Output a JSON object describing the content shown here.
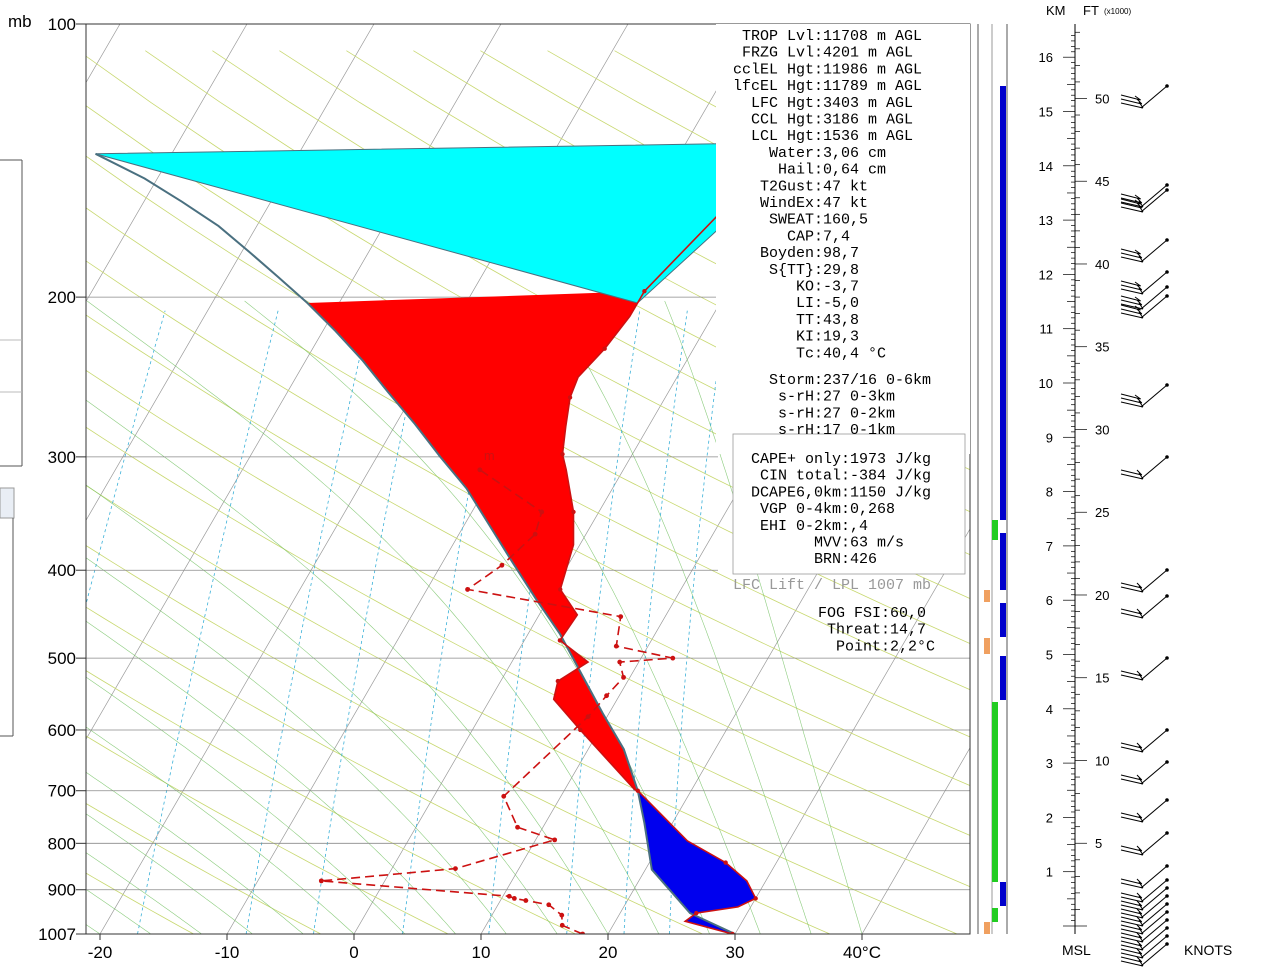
{
  "axis": {
    "pressure_unit": "mb",
    "pressure_ticks": [
      {
        "p": 100,
        "label": "100"
      },
      {
        "p": 200,
        "label": "200"
      },
      {
        "p": 300,
        "label": "300"
      },
      {
        "p": 400,
        "label": "400"
      },
      {
        "p": 500,
        "label": "500"
      },
      {
        "p": 600,
        "label": "600"
      },
      {
        "p": 700,
        "label": "700"
      },
      {
        "p": 800,
        "label": "800"
      },
      {
        "p": 900,
        "label": "900"
      },
      {
        "p": 1007,
        "label": "1007"
      }
    ],
    "temp_ticks": [
      {
        "t": -20,
        "label": "-20"
      },
      {
        "t": -10,
        "label": "-10"
      },
      {
        "t": 0,
        "label": "0"
      },
      {
        "t": 10,
        "label": "10"
      },
      {
        "t": 20,
        "label": "20"
      },
      {
        "t": 30,
        "label": "30"
      },
      {
        "t": 40,
        "label": "40°C"
      }
    ]
  },
  "chart_data": {
    "type": "line",
    "title": "",
    "x_unit": "°C",
    "y_unit": "mb",
    "series": [
      {
        "kind": "dewpoint",
        "marker_label": "m",
        "color": "#cc1111",
        "points": [
          [
            18.0,
            1007
          ],
          [
            16.0,
            985
          ],
          [
            15.5,
            960
          ],
          [
            14.0,
            935
          ],
          [
            12.0,
            925
          ],
          [
            11.0,
            920
          ],
          [
            10.5,
            915
          ],
          [
            -5.0,
            880
          ],
          [
            5.0,
            853
          ],
          [
            11.5,
            793
          ],
          [
            8.0,
            768
          ],
          [
            5.5,
            710
          ],
          [
            8.5,
            580
          ],
          [
            9.0,
            550
          ],
          [
            9.5,
            525
          ],
          [
            8.5,
            505
          ],
          [
            12.5,
            500
          ],
          [
            7.5,
            485
          ],
          [
            6.5,
            450
          ],
          [
            -6.8,
            420
          ],
          [
            -5.2,
            395
          ],
          [
            -4.0,
            365
          ],
          [
            -4.5,
            345
          ],
          [
            -11.3,
            310
          ]
        ]
      },
      {
        "kind": "temperature",
        "color": "#cc1111",
        "points": [
          [
            29.8,
            1007
          ],
          [
            25.5,
            975
          ],
          [
            26.0,
            955
          ],
          [
            29.0,
            940
          ],
          [
            30.0,
            920
          ],
          [
            28.5,
            880
          ],
          [
            26.0,
            840
          ],
          [
            22.0,
            795
          ],
          [
            15.8,
            700
          ],
          [
            15.5,
            698
          ],
          [
            8.5,
            600
          ],
          [
            5.0,
            555
          ],
          [
            4.5,
            530
          ],
          [
            6.0,
            505
          ],
          [
            2.8,
            478
          ],
          [
            3.0,
            448
          ],
          [
            0.5,
            420
          ],
          [
            -0.5,
            375
          ],
          [
            -2.0,
            345
          ],
          [
            -4.5,
            310
          ],
          [
            -5.5,
            298
          ],
          [
            -6.5,
            278
          ],
          [
            -7.5,
            258
          ],
          [
            -7.8,
            245
          ],
          [
            -7.0,
            228
          ],
          [
            -6.5,
            210
          ],
          [
            -6.5,
            197
          ],
          [
            -4.0,
            160
          ],
          [
            0.0,
            135
          ],
          [
            3.0,
            115
          ]
        ]
      },
      {
        "kind": "parcel",
        "color": "#4a7080",
        "points": [
          [
            30.0,
            1007
          ],
          [
            25.5,
            955
          ],
          [
            20.5,
            855
          ],
          [
            17.8,
            760
          ],
          [
            15.8,
            700
          ],
          [
            12.8,
            630
          ],
          [
            9.5,
            575
          ],
          [
            6.0,
            520
          ],
          [
            2.5,
            470
          ],
          [
            -1.0,
            430
          ],
          [
            -4.5,
            392
          ],
          [
            -8.0,
            357
          ],
          [
            -11.5,
            325
          ],
          [
            -15.0,
            300
          ],
          [
            -18.5,
            276
          ],
          [
            -22.0,
            255
          ],
          [
            -25.5,
            235
          ],
          [
            -29.0,
            218
          ],
          [
            -32.5,
            203
          ],
          [
            -36.0,
            190
          ],
          [
            -39.5,
            178
          ],
          [
            -43.0,
            167
          ],
          [
            -47.0,
            157
          ],
          [
            -51.0,
            148
          ],
          [
            -56.0,
            139
          ]
        ]
      }
    ],
    "side_bar_colors": [
      "#0000cc",
      "#22cc22",
      "#f0a060"
    ],
    "wind_scale_km": [
      "16",
      "15",
      "14",
      "13",
      "12",
      "11",
      "10",
      "9",
      "8",
      "7",
      "6",
      "5",
      "4",
      "3",
      "2",
      "1"
    ],
    "wind_scale_ft": [
      "50",
      "45",
      "40",
      "35",
      "30",
      "25",
      "20",
      "15",
      "10",
      "5"
    ]
  },
  "indices": {
    "block1": [
      "TROP Lvl: 11708 m AGL",
      "FRZG Lvl:  4201 m AGL",
      "cclEL Hgt: 11986 m AGL",
      "lfcEL Hgt: 11789 m AGL",
      "LFC Hgt:  3403 m AGL",
      "CCL Hgt:  3186 m AGL",
      "LCL Hgt:  1536 m AGL",
      "Water:  3,06 cm",
      "Hail:  0,64 cm",
      "T2Gust:     47 kt",
      "WindEx:     47 kt",
      "SWEAT: 160,5",
      "CAP:   7,4",
      "Boyden:  98,7",
      "S{TT}:  29,8",
      "KO:  -3,7",
      "LI:  -5,0",
      "TT:  43,8",
      "KI:  19,3",
      "Tc:  40,4  °C"
    ],
    "block2": [
      "Storm: 237/16 0-6km",
      "s-rH:    27   0-3km",
      "s-rH:    27   0-2km",
      "s-rH:    17   0-1km"
    ],
    "block3": [
      "CAPE+ only:   1973 J/kg",
      "CIN total:   -384 J/kg",
      "DCAPE6,0km:   1150 J/kg",
      "VGP 0-4km:     0,268",
      "EHI 0-2km:       ,4",
      "MVV:      63 m/s",
      "BRN:     426"
    ],
    "lift_note": "LFC Lift / LPL 1007 mb",
    "block4": [
      "FOG FSI: 60,0",
      "Threat: 14,7",
      "Point:   2,2°C"
    ]
  },
  "wind_panel": {
    "km_label": "KM",
    "ft_label": "FT",
    "ft_scale": "(x1000)",
    "msl_label": "MSL",
    "knots_label": "KNOTS"
  }
}
